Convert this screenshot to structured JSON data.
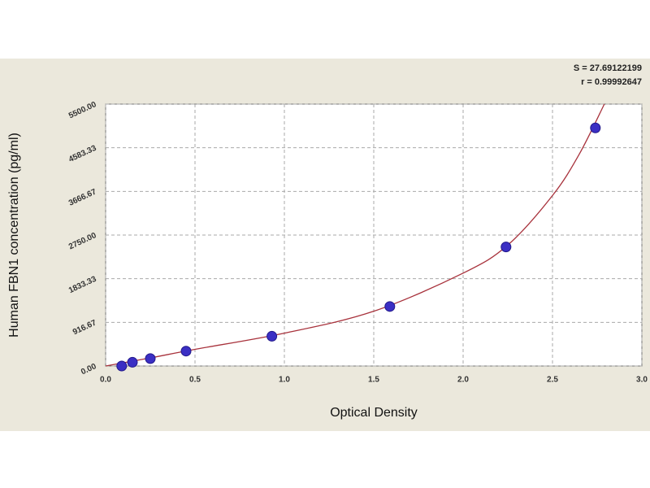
{
  "chart_data": {
    "type": "scatter",
    "x_label": "Optical Density",
    "y_label": "Human FBN1 concentration (pg/ml)",
    "annotations": [
      "S = 27.69122199",
      "r = 0.99992647"
    ],
    "series": [
      {
        "color": "#3b2fc4",
        "x": [
          0.09,
          0.15,
          0.25,
          0.45,
          0.93,
          1.59,
          2.24,
          2.74
        ],
        "values": [
          0,
          78.13,
          156.25,
          312.5,
          625,
          1250,
          2500,
          5000
        ]
      }
    ],
    "fit": {
      "color": "#a8323c",
      "x": [
        0.0,
        0.25,
        0.5,
        1.0,
        1.5,
        2.0,
        2.25,
        2.5,
        2.65,
        2.79
      ],
      "values": [
        0,
        170,
        350,
        690,
        1150,
        1950,
        2540,
        3580,
        4450,
        5500
      ]
    },
    "xlim": [
      0,
      3.0
    ],
    "ylim": [
      0,
      5500
    ],
    "xticks": [
      {
        "value": 0,
        "label": "0.0"
      },
      0.5,
      {
        "value": 1,
        "label": "1.0"
      },
      1.5,
      {
        "value": 2,
        "label": "2.0"
      },
      2.5,
      {
        "value": 3,
        "label": "3.0"
      }
    ],
    "yticks": [
      {
        "value": 0,
        "label": "0.00"
      },
      {
        "value": 916.67,
        "label": "916.67"
      },
      {
        "value": 1833.33,
        "label": "1833.33"
      },
      {
        "value": 2750,
        "label": "2750.00"
      },
      {
        "value": 3666.67,
        "label": "3666.67"
      },
      {
        "value": 4583.33,
        "label": "4583.33"
      },
      {
        "value": 5500,
        "label": "5500.00"
      }
    ],
    "grid": true
  }
}
